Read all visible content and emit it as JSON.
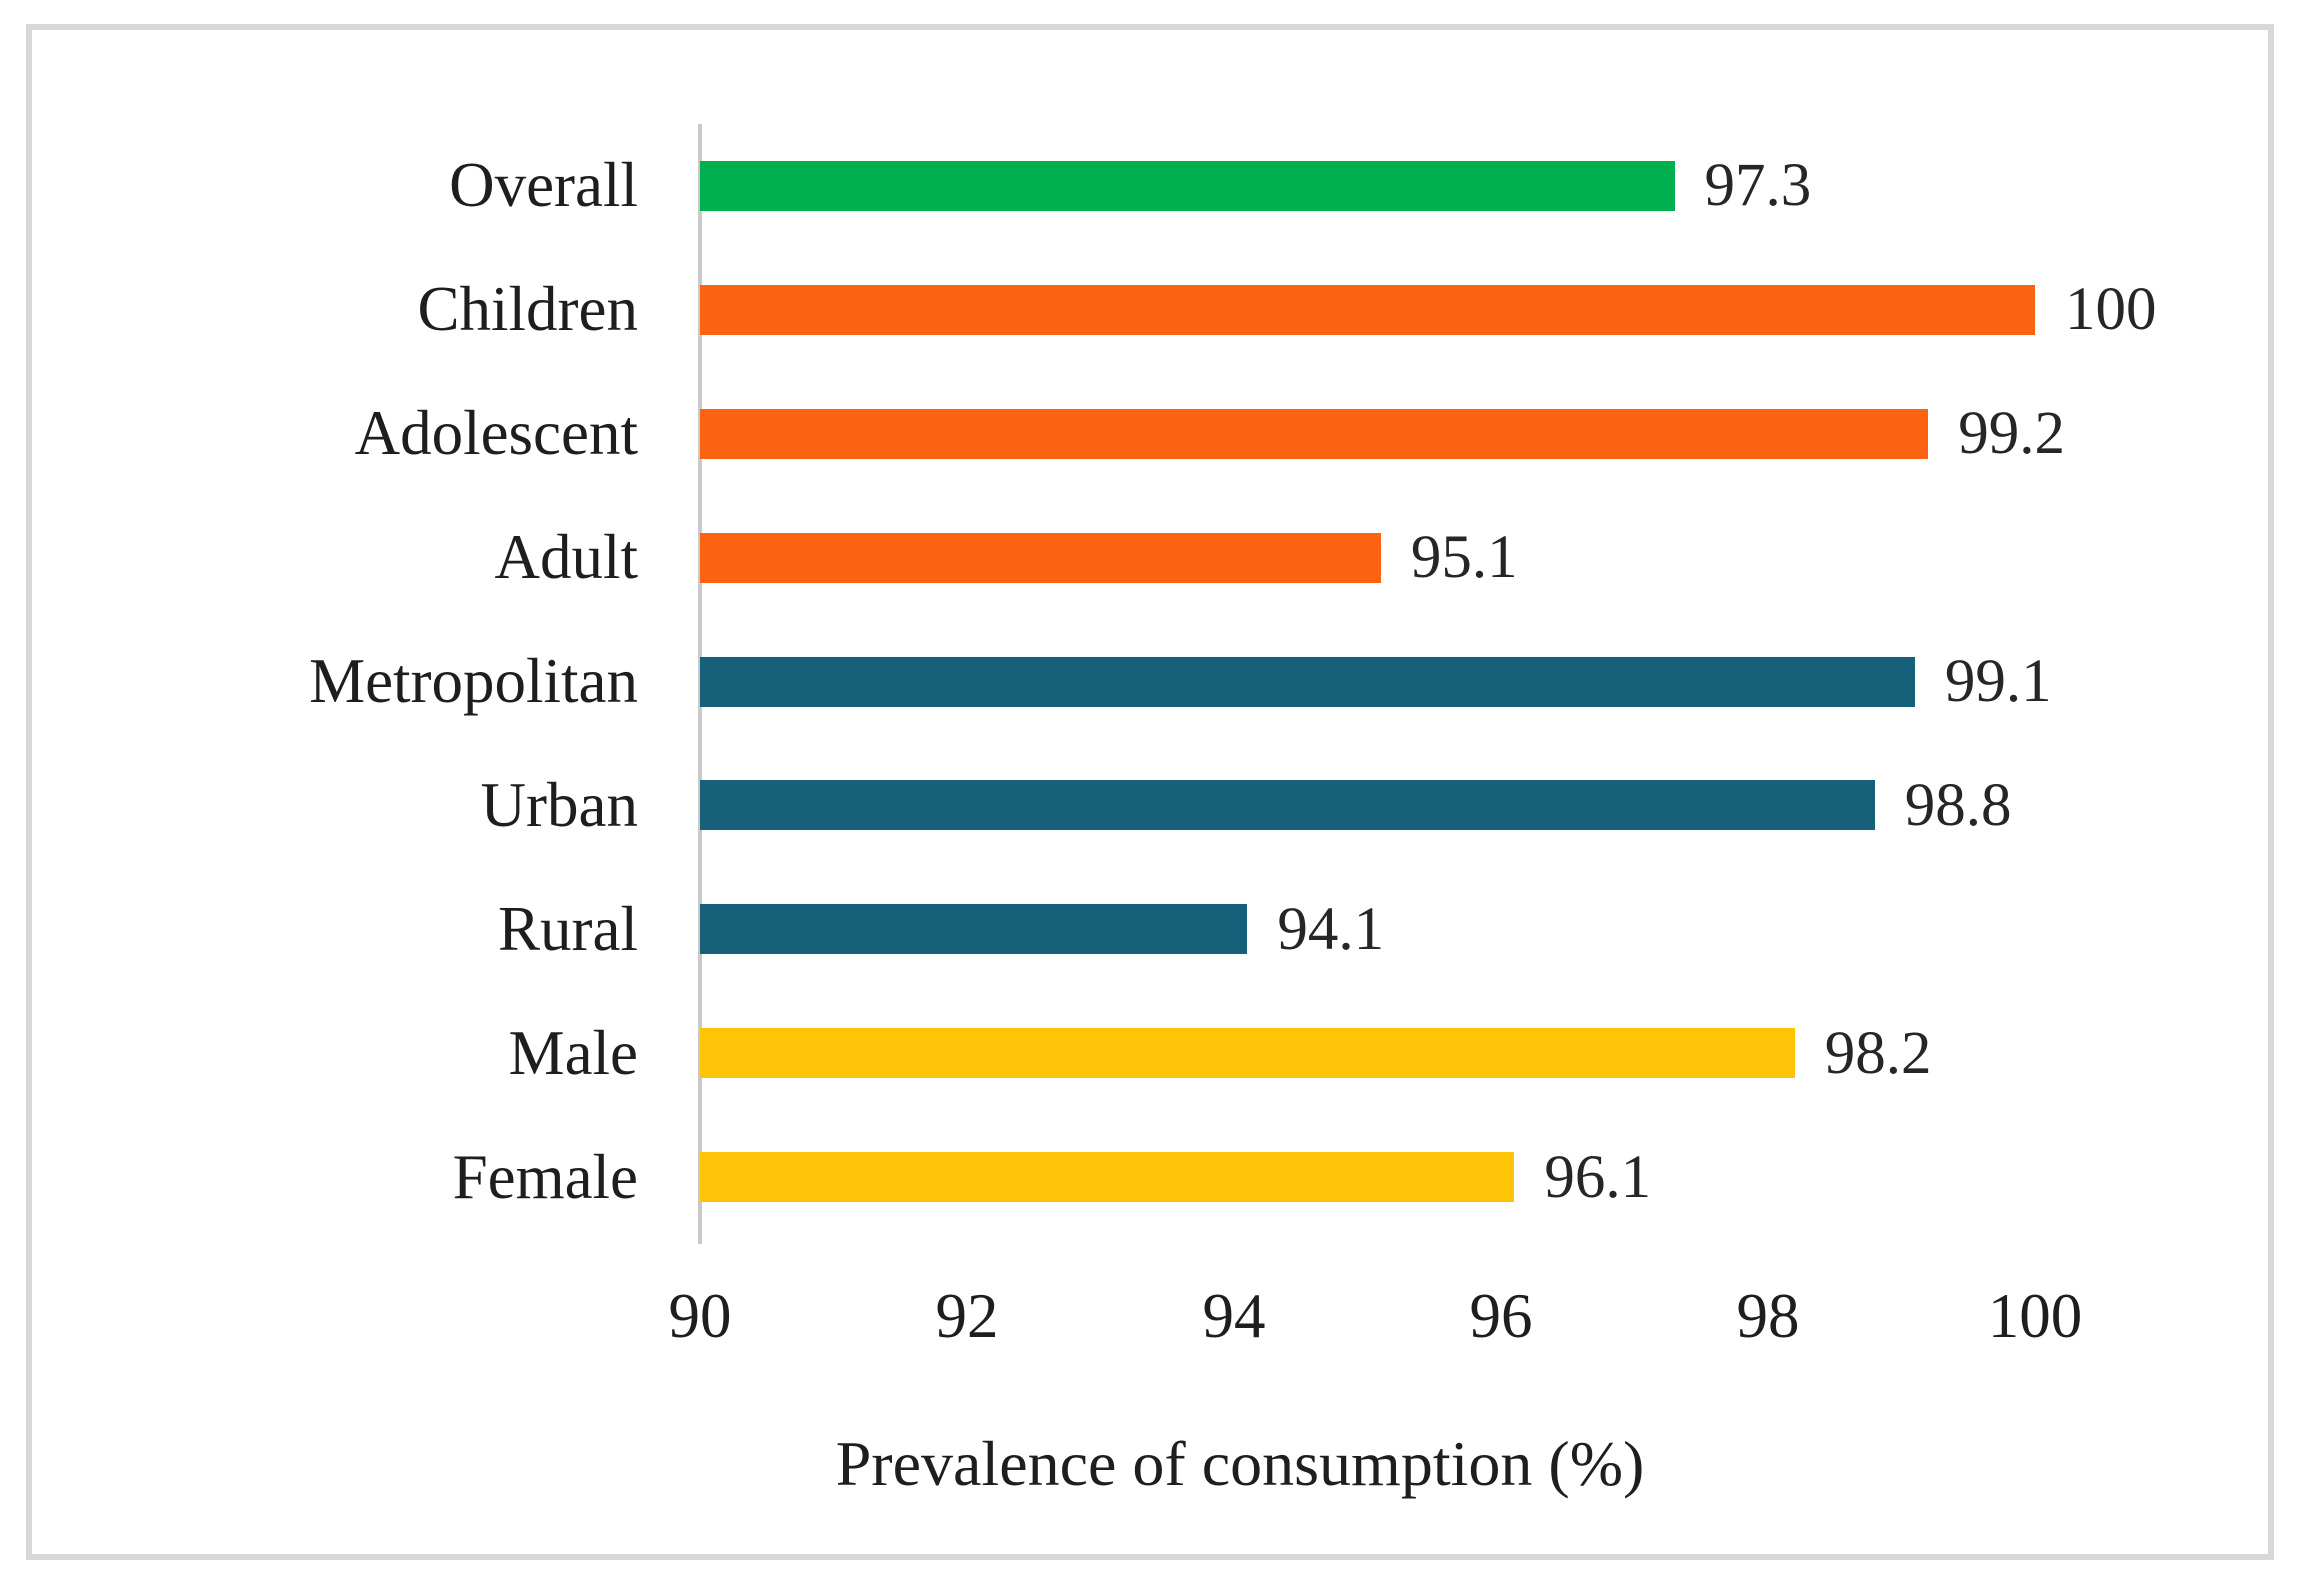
{
  "chart_data": {
    "type": "bar",
    "orientation": "horizontal",
    "title": "",
    "categories": [
      "Overall",
      "Children",
      "Adolescent",
      "Adult",
      "Metropolitan",
      "Urban",
      "Rural",
      "Male",
      "Female"
    ],
    "values": [
      97.3,
      100,
      99.2,
      95.1,
      99.1,
      98.8,
      94.1,
      98.2,
      96.1
    ],
    "value_labels": [
      "97.3",
      "100",
      "99.2",
      "95.1",
      "99.1",
      "98.8",
      "94.1",
      "98.2",
      "96.1"
    ],
    "bar_colors": [
      "#00af50",
      "#fb6211",
      "#fb6211",
      "#fb6211",
      "#17607a",
      "#17607a",
      "#17607a",
      "#ffc307",
      "#ffc307"
    ],
    "group_palette": {
      "overall_green": "#00af50",
      "age_orange": "#fb6211",
      "area_teal": "#17607a",
      "sex_gold": "#ffc307"
    },
    "xlabel": "Prevalence of consumption (%)",
    "ylabel": "",
    "xlim": [
      90,
      100
    ],
    "xticks": [
      90,
      92,
      94,
      96,
      98,
      100
    ],
    "grid": false,
    "legend": false,
    "axis_line_color": "#c9c9c9",
    "text_color": "#1e1e1e",
    "frame_color": "#d7d8da"
  }
}
